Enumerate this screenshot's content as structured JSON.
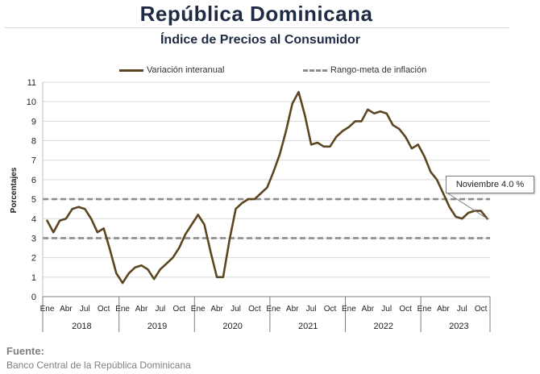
{
  "chart_data": {
    "type": "line",
    "title": "República Dominicana",
    "subtitle": "Índice de Precios al Consumidor",
    "ylabel": "Porcentajes",
    "xlabel": "",
    "ylim": [
      0,
      11
    ],
    "yticks": [
      0,
      1,
      2,
      3,
      4,
      5,
      6,
      7,
      8,
      9,
      10,
      11
    ],
    "grid": "horizontal",
    "legend_placement": "top",
    "month_tick_labels": [
      "Ene",
      "Abr",
      "Jul",
      "Oct"
    ],
    "years": [
      "2018",
      "2019",
      "2020",
      "2021",
      "2022",
      "2023"
    ],
    "series": [
      {
        "name": "Variación interanual",
        "color": "#5c4621",
        "style": "solid",
        "values": [
          3.9,
          3.3,
          3.9,
          4.0,
          4.5,
          4.6,
          4.5,
          4.0,
          3.3,
          3.5,
          2.4,
          1.2,
          0.7,
          1.2,
          1.5,
          1.6,
          1.4,
          0.9,
          1.4,
          1.7,
          2.0,
          2.5,
          3.2,
          3.7,
          4.2,
          3.7,
          2.3,
          1.0,
          1.0,
          2.9,
          4.5,
          4.8,
          5.0,
          5.0,
          5.3,
          5.6,
          6.4,
          7.3,
          8.5,
          9.9,
          10.5,
          9.3,
          7.8,
          7.9,
          7.7,
          7.7,
          8.2,
          8.5,
          8.7,
          9.0,
          9.0,
          9.6,
          9.4,
          9.5,
          9.4,
          8.8,
          8.6,
          8.2,
          7.6,
          7.8,
          7.2,
          6.4,
          6.0,
          5.3,
          4.6,
          4.1,
          4.0,
          4.3,
          4.4,
          4.4,
          4.0
        ]
      },
      {
        "name": "Rango-meta de inflación",
        "color": "#8c8c8c",
        "style": "dashed",
        "values": [
          3,
          5
        ]
      }
    ],
    "annotation": {
      "text": "Noviembre 4.0 %"
    }
  },
  "source": {
    "label": "Fuente:",
    "text": "Banco Central de la República Dominicana"
  }
}
